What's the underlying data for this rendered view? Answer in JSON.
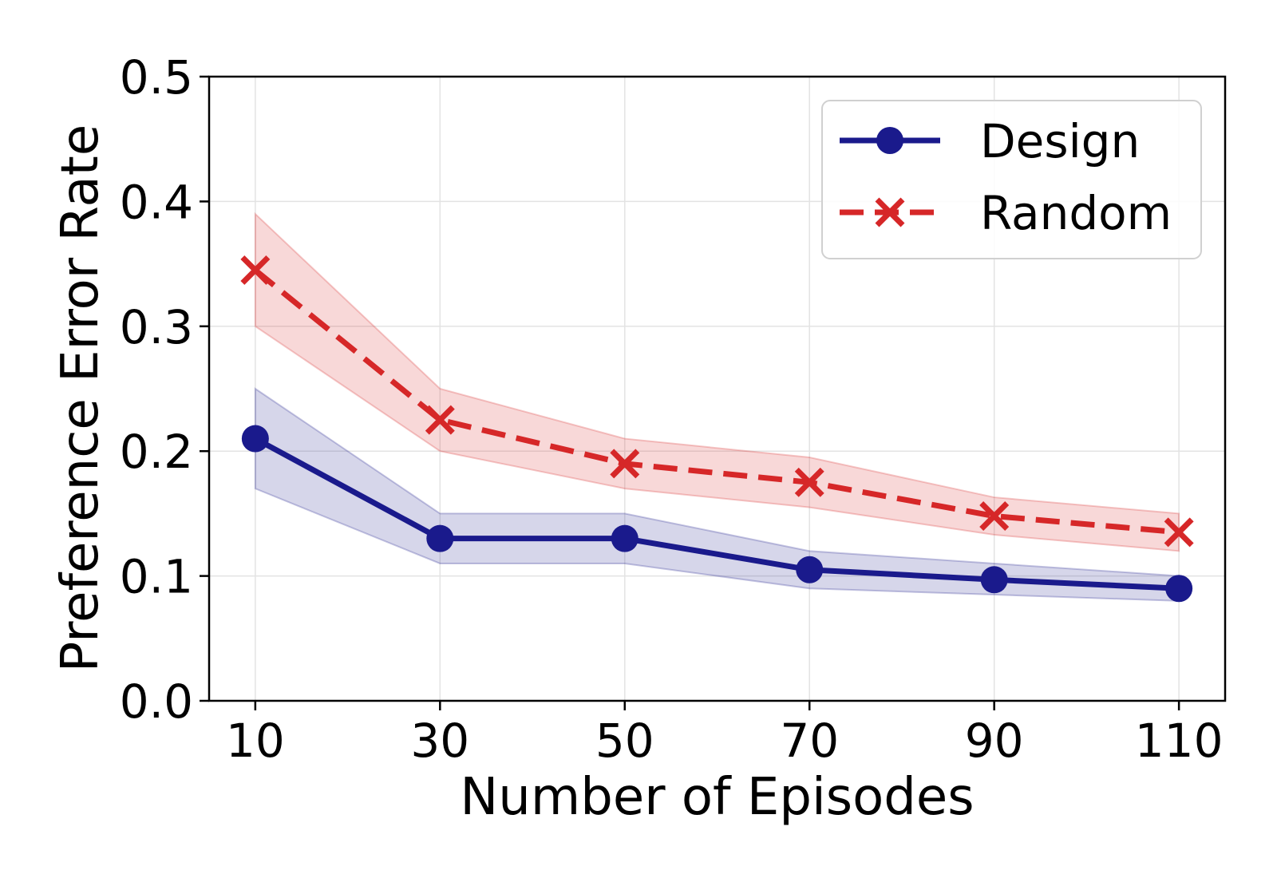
{
  "chart_data": {
    "type": "line",
    "title": "",
    "xlabel": "Number of Episodes",
    "ylabel": "Preference Error Rate",
    "x": [
      10,
      30,
      50,
      70,
      90,
      110
    ],
    "xticks": [
      "10",
      "30",
      "50",
      "70",
      "90",
      "110"
    ],
    "yticks": [
      "0.0",
      "0.1",
      "0.2",
      "0.3",
      "0.4",
      "0.5"
    ],
    "xlim": [
      5,
      115
    ],
    "ylim": [
      0.0,
      0.5
    ],
    "grid": true,
    "legend_position": "top-right",
    "series": [
      {
        "name": "Design",
        "color": "#1a1a8c",
        "marker": "circle",
        "linestyle": "solid",
        "values": [
          0.21,
          0.13,
          0.13,
          0.105,
          0.097,
          0.09
        ],
        "lower": [
          0.17,
          0.11,
          0.11,
          0.09,
          0.085,
          0.08
        ],
        "upper": [
          0.25,
          0.15,
          0.15,
          0.12,
          0.11,
          0.1
        ]
      },
      {
        "name": "Random",
        "color": "#d62728",
        "marker": "x",
        "linestyle": "dashed",
        "values": [
          0.345,
          0.225,
          0.19,
          0.175,
          0.148,
          0.135
        ],
        "lower": [
          0.3,
          0.2,
          0.17,
          0.155,
          0.133,
          0.12
        ],
        "upper": [
          0.39,
          0.25,
          0.21,
          0.195,
          0.163,
          0.15
        ]
      }
    ]
  }
}
